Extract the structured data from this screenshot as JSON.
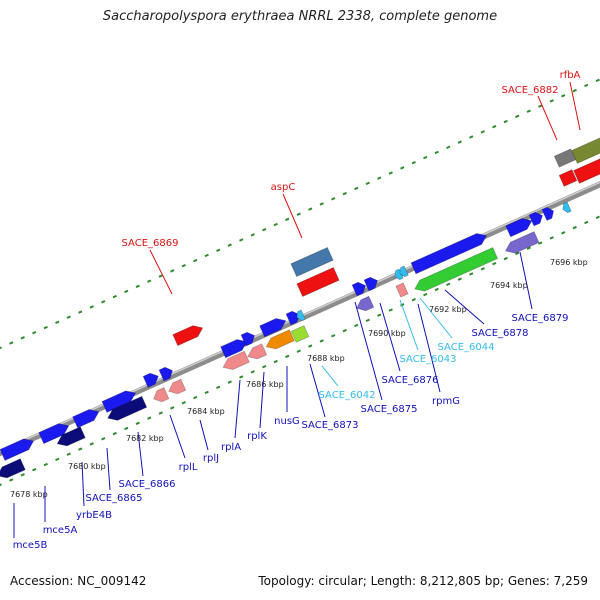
{
  "title": "Saccharopolyspora erythraea NRRL 2338, complete genome",
  "footer": {
    "accession": "Accession: NC_009142",
    "topology": "Topology: circular; Length: 8,212,805 bp; Genes: 7,259"
  },
  "colors": {
    "backbone": "#8c8c8c",
    "gene_blue": "#1a1aee",
    "gene_navy": "#0c0c78",
    "gene_red": "#ee1111",
    "gene_pink": "#f08a8a",
    "gene_orange": "#f08a00",
    "gene_lime": "#99dd33",
    "gene_green": "#33cc33",
    "gene_purple": "#7766cc",
    "gene_steel": "#4477aa",
    "gene_olive": "#778833",
    "gene_gray": "#777777",
    "gene_cyan": "#33bbee",
    "label_red": "#dd1111",
    "label_blue": "#1111bb",
    "label_cyan": "#33bbee",
    "tick_green": "#2e8b2e"
  },
  "ticks": [
    "7678 kbp",
    "7680 kbp",
    "7682 kbp",
    "7684 kbp",
    "7686 kbp",
    "7688 kbp",
    "7690 kbp",
    "7692 kbp",
    "7694 kbp",
    "7696 kbp"
  ],
  "labels_top": [
    "SACE_6869",
    "aspC",
    "SACE_6882",
    "rfbA"
  ],
  "labels_bottom": [
    "mce5B",
    "mce5A",
    "yrbE4B",
    "SACE_6865",
    "SACE_6866",
    "rplL",
    "rplJ",
    "rplA",
    "rplK",
    "nusG",
    "SACE_6873",
    "SACE_6042",
    "SACE_6875",
    "SACE_6876",
    "SACE_6043",
    "rpmG",
    "SACE_6044",
    "SACE_6878",
    "SACE_6879"
  ]
}
